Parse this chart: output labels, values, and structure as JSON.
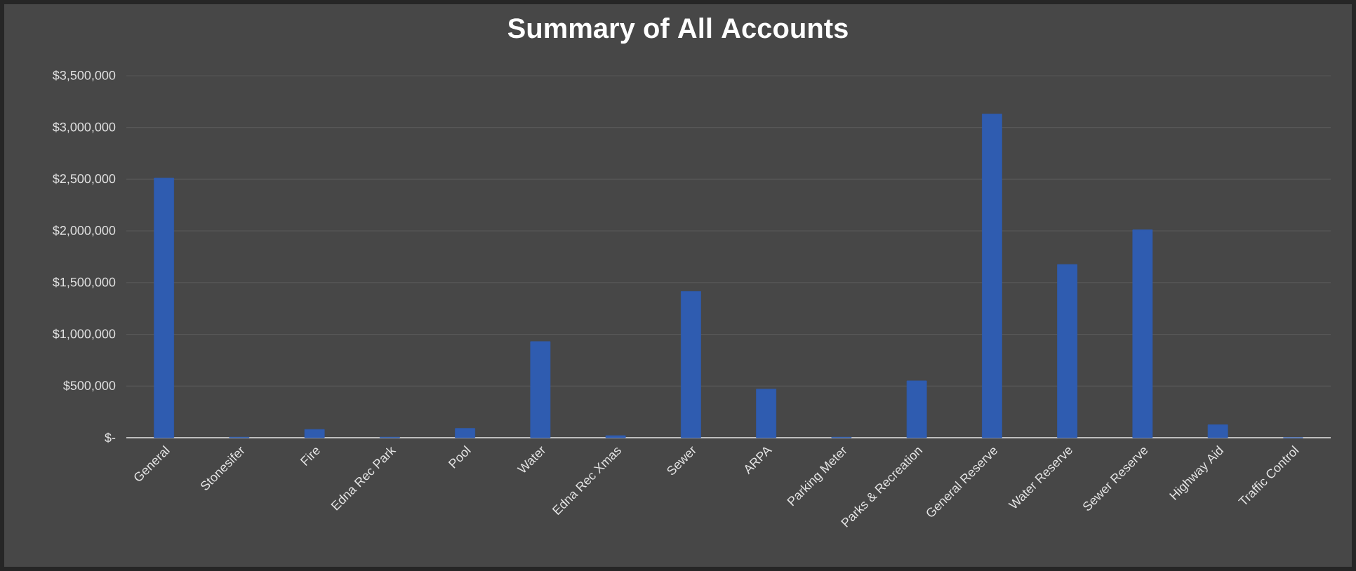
{
  "chart_data": {
    "type": "bar",
    "title": "Summary of All Accounts",
    "categories": [
      "General",
      "Stonesifer",
      "Fire",
      "Edna Rec Park",
      "Pool",
      "Water",
      "Edna Rec Xmas",
      "Sewer",
      "ARPA",
      "Parking Meter",
      "Parks & Recreation",
      "General Reserve",
      "Water Reserve",
      "Sewer Reserve",
      "Highway Aid",
      "Traffic Control"
    ],
    "values": [
      2510000,
      5000,
      80000,
      5000,
      90000,
      930000,
      20000,
      1415000,
      470000,
      5000,
      550000,
      3130000,
      1675000,
      2010000,
      125000,
      0
    ],
    "color": "#2f5cb0",
    "ylim": [
      0,
      3500000
    ],
    "yticks": [
      {
        "value": 0,
        "label": "$-"
      },
      {
        "value": 500000,
        "label": "$500,000"
      },
      {
        "value": 1000000,
        "label": "$1,000,000"
      },
      {
        "value": 1500000,
        "label": "$1,500,000"
      },
      {
        "value": 2000000,
        "label": "$2,000,000"
      },
      {
        "value": 2500000,
        "label": "$2,500,000"
      },
      {
        "value": 3000000,
        "label": "$3,000,000"
      },
      {
        "value": 3500000,
        "label": "$3,500,000"
      }
    ],
    "grid": "y"
  }
}
